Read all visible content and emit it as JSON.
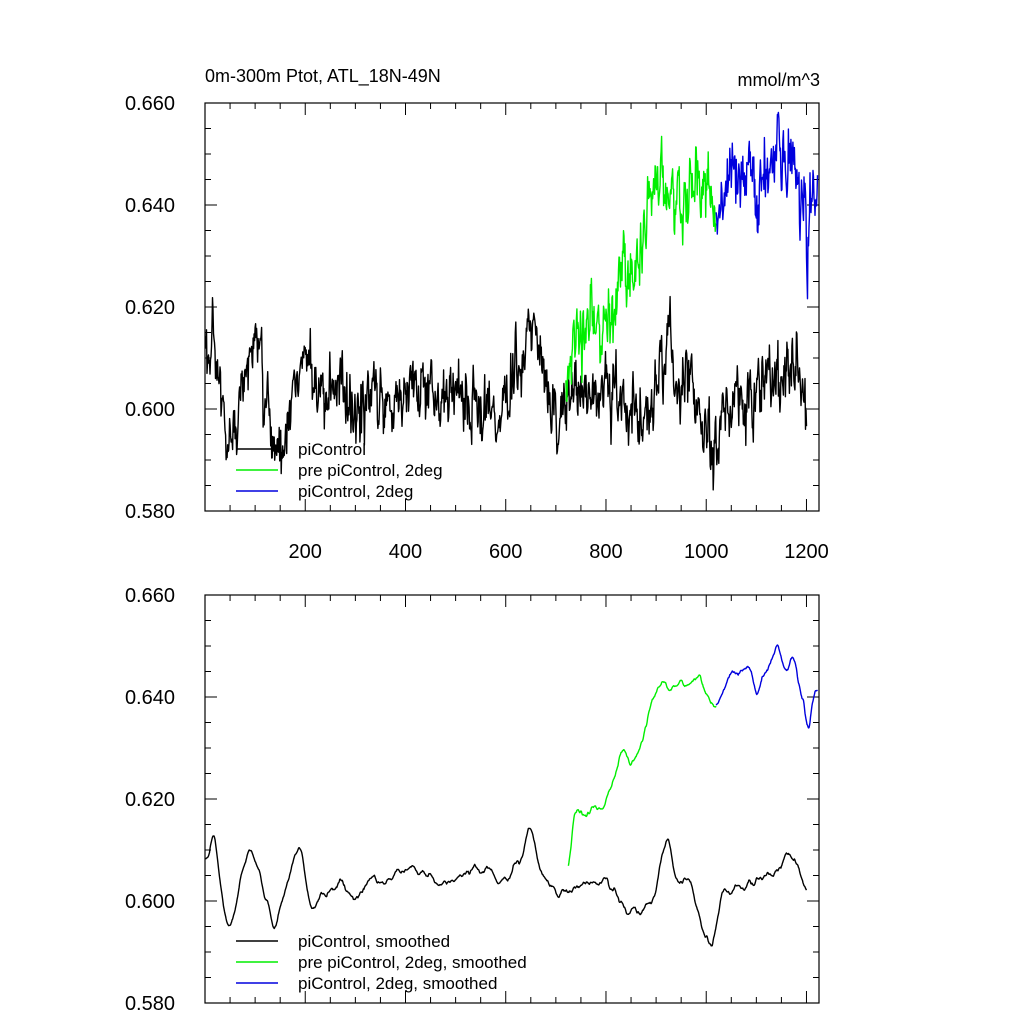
{
  "chart_data": [
    {
      "type": "line",
      "title": "0m-300m Ptot, ATL_18N-49N",
      "units": "mmol/m^3",
      "xlim": [
        0,
        1225
      ],
      "ylim": [
        0.58,
        0.66
      ],
      "x_ticks": [
        200,
        400,
        600,
        800,
        1000,
        1200
      ],
      "x_tick_labels": [
        "200",
        "400",
        "600",
        "800",
        "1000",
        "1200"
      ],
      "y_ticks": [
        0.58,
        0.6,
        0.62,
        0.64,
        0.66
      ],
      "y_tick_labels": [
        "0.580",
        "0.600",
        "0.620",
        "0.640",
        "0.660"
      ],
      "legend": [
        "piControl",
        "pre piControl, 2deg",
        "piControl, 2deg"
      ],
      "legend_position": "bottom-left",
      "series": [
        {
          "name": "piControl",
          "color": "#000000",
          "x_start": 1,
          "x_end": 1200,
          "points": [
            [
              1,
              0.61
            ],
            [
              30,
              0.606
            ],
            [
              45,
              0.588
            ],
            [
              80,
              0.607
            ],
            [
              100,
              0.614
            ],
            [
              130,
              0.596
            ],
            [
              150,
              0.59
            ],
            [
              170,
              0.602
            ],
            [
              200,
              0.612
            ],
            [
              230,
              0.6
            ],
            [
              260,
              0.604
            ],
            [
              300,
              0.598
            ],
            [
              340,
              0.603
            ],
            [
              380,
              0.602
            ],
            [
              420,
              0.604
            ],
            [
              460,
              0.603
            ],
            [
              500,
              0.604
            ],
            [
              540,
              0.602
            ],
            [
              570,
              0.598
            ],
            [
              600,
              0.602
            ],
            [
              620,
              0.606
            ],
            [
              640,
              0.61
            ],
            [
              660,
              0.616
            ],
            [
              690,
              0.603
            ],
            [
              720,
              0.6
            ],
            [
              760,
              0.604
            ],
            [
              800,
              0.604
            ],
            [
              840,
              0.6
            ],
            [
              880,
              0.598
            ],
            [
              910,
              0.605
            ],
            [
              925,
              0.615
            ],
            [
              940,
              0.606
            ],
            [
              970,
              0.605
            ],
            [
              1000,
              0.594
            ],
            [
              1010,
              0.59
            ],
            [
              1030,
              0.6
            ],
            [
              1060,
              0.601
            ],
            [
              1090,
              0.603
            ],
            [
              1120,
              0.604
            ],
            [
              1140,
              0.604
            ],
            [
              1160,
              0.612
            ],
            [
              1180,
              0.604
            ],
            [
              1200,
              0.604
            ]
          ]
        },
        {
          "name": "pre piControl, 2deg",
          "color": "#00ee00",
          "x_start": 720,
          "x_end": 1020,
          "points": [
            [
              720,
              0.602
            ],
            [
              735,
              0.612
            ],
            [
              760,
              0.616
            ],
            [
              790,
              0.616
            ],
            [
              810,
              0.618
            ],
            [
              830,
              0.628
            ],
            [
              850,
              0.627
            ],
            [
              870,
              0.632
            ],
            [
              890,
              0.64
            ],
            [
              910,
              0.643
            ],
            [
              940,
              0.644
            ],
            [
              960,
              0.643
            ],
            [
              990,
              0.645
            ],
            [
              1010,
              0.642
            ],
            [
              1020,
              0.64
            ]
          ]
        },
        {
          "name": "piControl, 2deg",
          "color": "#0000dd",
          "x_start": 1020,
          "x_end": 1222,
          "points": [
            [
              1020,
              0.64
            ],
            [
              1040,
              0.644
            ],
            [
              1060,
              0.644
            ],
            [
              1080,
              0.646
            ],
            [
              1100,
              0.642
            ],
            [
              1120,
              0.646
            ],
            [
              1140,
              0.651
            ],
            [
              1160,
              0.645
            ],
            [
              1175,
              0.648
            ],
            [
              1190,
              0.64
            ],
            [
              1202,
              0.632
            ],
            [
              1210,
              0.637
            ],
            [
              1222,
              0.642
            ]
          ]
        }
      ]
    },
    {
      "type": "line",
      "xlim": [
        0,
        1225
      ],
      "ylim": [
        0.58,
        0.66
      ],
      "y_ticks": [
        0.58,
        0.6,
        0.62,
        0.64,
        0.66
      ],
      "y_tick_labels": [
        "0.580",
        "0.600",
        "0.620",
        "0.640",
        "0.660"
      ],
      "legend": [
        "piControl, smoothed",
        "pre piControl, 2deg, smoothed",
        "piControl, 2deg, smoothed"
      ],
      "legend_position": "bottom-left",
      "series": [
        {
          "name": "piControl, smoothed",
          "color": "#000000",
          "x_start": 1,
          "x_end": 1200,
          "points": [
            [
              1,
              0.607
            ],
            [
              20,
              0.612
            ],
            [
              40,
              0.596
            ],
            [
              50,
              0.593
            ],
            [
              70,
              0.604
            ],
            [
              90,
              0.611
            ],
            [
              110,
              0.604
            ],
            [
              140,
              0.594
            ],
            [
              160,
              0.603
            ],
            [
              190,
              0.612
            ],
            [
              210,
              0.598
            ],
            [
              240,
              0.601
            ],
            [
              270,
              0.603
            ],
            [
              300,
              0.6
            ],
            [
              330,
              0.604
            ],
            [
              360,
              0.604
            ],
            [
              380,
              0.606
            ],
            [
              420,
              0.606
            ],
            [
              460,
              0.604
            ],
            [
              500,
              0.604
            ],
            [
              530,
              0.607
            ],
            [
              560,
              0.606
            ],
            [
              600,
              0.604
            ],
            [
              630,
              0.608
            ],
            [
              650,
              0.614
            ],
            [
              670,
              0.606
            ],
            [
              700,
              0.603
            ],
            [
              730,
              0.601
            ],
            [
              760,
              0.604
            ],
            [
              800,
              0.604
            ],
            [
              840,
              0.598
            ],
            [
              870,
              0.598
            ],
            [
              900,
              0.601
            ],
            [
              920,
              0.613
            ],
            [
              940,
              0.605
            ],
            [
              970,
              0.603
            ],
            [
              1000,
              0.592
            ],
            [
              1010,
              0.59
            ],
            [
              1030,
              0.602
            ],
            [
              1060,
              0.602
            ],
            [
              1090,
              0.604
            ],
            [
              1120,
              0.604
            ],
            [
              1140,
              0.605
            ],
            [
              1160,
              0.611
            ],
            [
              1180,
              0.606
            ],
            [
              1200,
              0.603
            ]
          ]
        },
        {
          "name": "pre piControl, 2deg, smoothed",
          "color": "#00ee00",
          "x_start": 725,
          "x_end": 1020,
          "points": [
            [
              725,
              0.603
            ],
            [
              735,
              0.617
            ],
            [
              760,
              0.617
            ],
            [
              790,
              0.618
            ],
            [
              810,
              0.622
            ],
            [
              830,
              0.63
            ],
            [
              850,
              0.627
            ],
            [
              870,
              0.631
            ],
            [
              890,
              0.638
            ],
            [
              910,
              0.642
            ],
            [
              930,
              0.642
            ],
            [
              950,
              0.644
            ],
            [
              970,
              0.643
            ],
            [
              990,
              0.644
            ],
            [
              1010,
              0.638
            ],
            [
              1020,
              0.639
            ]
          ]
        },
        {
          "name": "piControl, 2deg, smoothed",
          "color": "#0000dd",
          "x_start": 1020,
          "x_end": 1222,
          "points": [
            [
              1020,
              0.639
            ],
            [
              1040,
              0.643
            ],
            [
              1060,
              0.644
            ],
            [
              1080,
              0.646
            ],
            [
              1100,
              0.641
            ],
            [
              1120,
              0.645
            ],
            [
              1140,
              0.65
            ],
            [
              1160,
              0.644
            ],
            [
              1175,
              0.648
            ],
            [
              1190,
              0.64
            ],
            [
              1205,
              0.632
            ],
            [
              1215,
              0.64
            ],
            [
              1222,
              0.642
            ]
          ]
        }
      ]
    }
  ]
}
